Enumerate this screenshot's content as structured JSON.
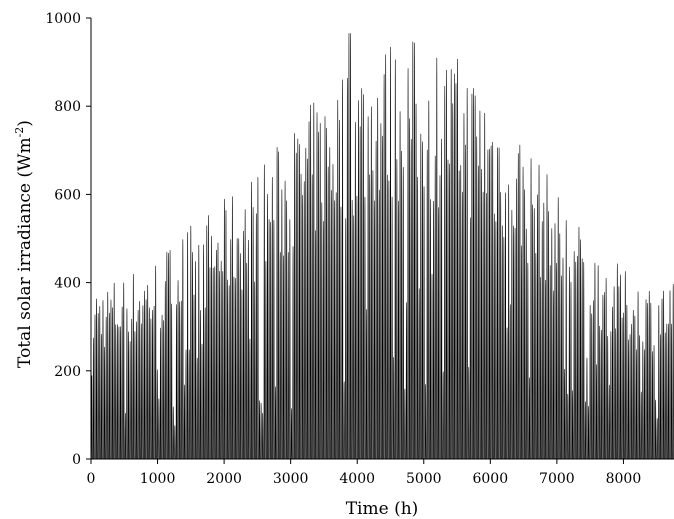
{
  "chart_data": {
    "type": "line",
    "title": "",
    "xlabel": "Time (h)",
    "ylabel_main": "Total solar irradiance (Wm",
    "ylabel_sup": "-2",
    "ylabel_close": ")",
    "xlim": [
      0,
      8760
    ],
    "ylim": [
      0,
      1000
    ],
    "xticks": [
      0,
      1000,
      2000,
      3000,
      4000,
      5000,
      6000,
      7000,
      8000
    ],
    "yticks": [
      0,
      200,
      400,
      600,
      800,
      1000
    ],
    "grid": false,
    "legend": "none",
    "line_color": "#000000",
    "series": [
      {
        "description": "hourly total solar irradiance over one year; each day rises from 0 to a daily peak and back to 0 overnight",
        "daily_peak_envelope": {
          "day": [
            0,
            20,
            40,
            60,
            80,
            100,
            120,
            140,
            160,
            180,
            200,
            220,
            240,
            260,
            280,
            300,
            320,
            340,
            365
          ],
          "peak": [
            400,
            420,
            460,
            530,
            580,
            650,
            730,
            820,
            900,
            950,
            960,
            940,
            890,
            800,
            680,
            560,
            470,
            410,
            400
          ]
        },
        "hours_per_day": 24,
        "max_value": 965,
        "max_at_hour": 3890
      }
    ]
  }
}
